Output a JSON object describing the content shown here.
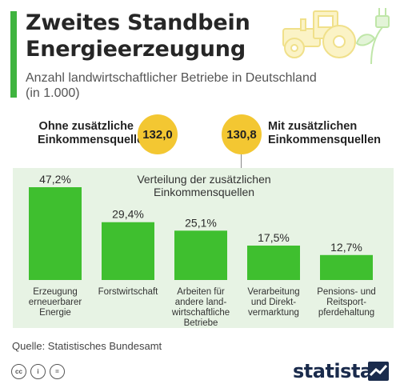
{
  "header": {
    "title_lines": [
      "Zweites Standbein",
      "Energieerzeugung"
    ],
    "subtitle_lines": [
      "Anzahl landwirtschaftlicher Betriebe in Deutschland",
      "(in 1.000)"
    ]
  },
  "totals": {
    "without": {
      "label_lines": [
        "Ohne zusätzliche",
        "Einkommensquellen"
      ],
      "value": "132,0"
    },
    "with": {
      "label_lines": [
        "Mit zusätzlichen",
        "Einkommensquellen"
      ],
      "value": "130,8"
    }
  },
  "chart_data": {
    "type": "bar",
    "title_lines": [
      "Verteilung der zusätzlichen",
      "Einkommensquellen"
    ],
    "categories": [
      [
        "Erzeugung",
        "erneuerbarer",
        "Energie"
      ],
      [
        "Forstwirtschaft"
      ],
      [
        "Arbeiten für",
        "andere land-",
        "wirtschaftliche",
        "Betriebe"
      ],
      [
        "Verarbeitung",
        "und Direkt-",
        "vermarktung"
      ],
      [
        "Pensions- und",
        "Reitsport-",
        "pferdehaltung"
      ]
    ],
    "values": [
      47.2,
      29.4,
      25.1,
      17.5,
      12.7
    ],
    "value_labels": [
      "47,2%",
      "29,4%",
      "25,1%",
      "17,5%",
      "12,7%"
    ],
    "ylim": [
      0,
      47.2
    ],
    "color": "#3fbf2f"
  },
  "footer": {
    "source": "Quelle: Statistisches Bundesamt",
    "brand": "statista",
    "license_icons": [
      "cc",
      "by",
      "nd"
    ]
  },
  "colors": {
    "accent": "#3fb43f",
    "bubble": "#f3c732",
    "panel": "#e7f3e4",
    "brand": "#1a2b4c"
  }
}
